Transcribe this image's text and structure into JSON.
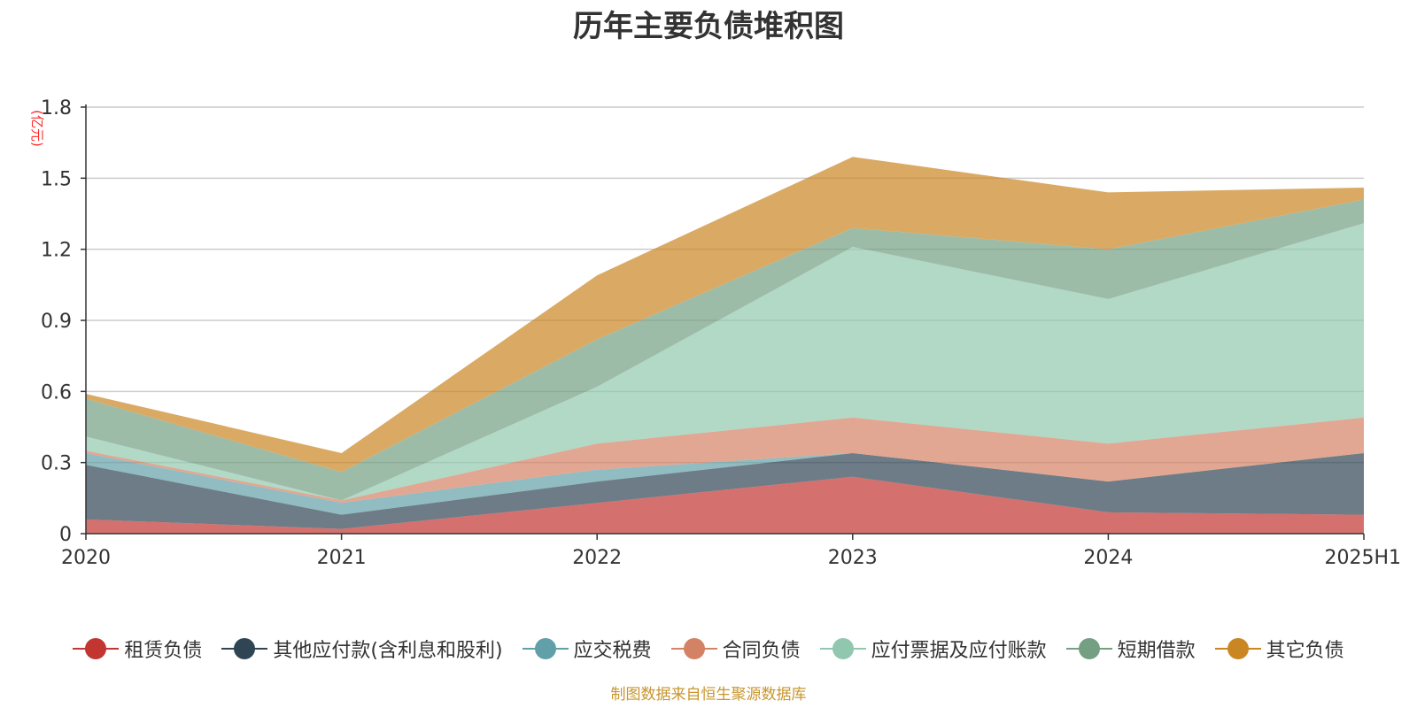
{
  "chart_data": {
    "type": "area",
    "stacked": true,
    "title": "历年主要负债堆积图",
    "unit_label": "(亿元)",
    "source": "制图数据来自恒生聚源数据库",
    "categories": [
      "2020",
      "2021",
      "2022",
      "2023",
      "2024",
      "2025H1"
    ],
    "ylim": [
      0,
      1.8
    ],
    "yticks": [
      0,
      0.3,
      0.6,
      0.9,
      1.2,
      1.5,
      1.8
    ],
    "ytick_labels": [
      "0",
      "0.3",
      "0.6",
      "0.9",
      "1.2",
      "1.5",
      "1.8"
    ],
    "grid": true,
    "legend_position": "bottom",
    "series": [
      {
        "name": "租赁负债",
        "color": "#c23531",
        "values": [
          0.06,
          0.02,
          0.13,
          0.24,
          0.09,
          0.08
        ]
      },
      {
        "name": "其他应付款(含利息和股利)",
        "color": "#2f4554",
        "values": [
          0.23,
          0.06,
          0.09,
          0.1,
          0.13,
          0.26
        ]
      },
      {
        "name": "应交税费",
        "color": "#61a0a8",
        "values": [
          0.05,
          0.05,
          0.05,
          0.0,
          0.0,
          0.0
        ]
      },
      {
        "name": "合同负债",
        "color": "#d48265",
        "values": [
          0.01,
          0.01,
          0.11,
          0.15,
          0.16,
          0.15
        ]
      },
      {
        "name": "应付票据及应付账款",
        "color": "#91c7ae",
        "values": [
          0.06,
          0.0,
          0.24,
          0.72,
          0.61,
          0.82
        ]
      },
      {
        "name": "短期借款",
        "color": "#749f83",
        "values": [
          0.16,
          0.12,
          0.2,
          0.08,
          0.21,
          0.1
        ]
      },
      {
        "name": "其它负债",
        "color": "#ca8622",
        "values": [
          0.02,
          0.08,
          0.27,
          0.3,
          0.24,
          0.05
        ]
      }
    ]
  }
}
